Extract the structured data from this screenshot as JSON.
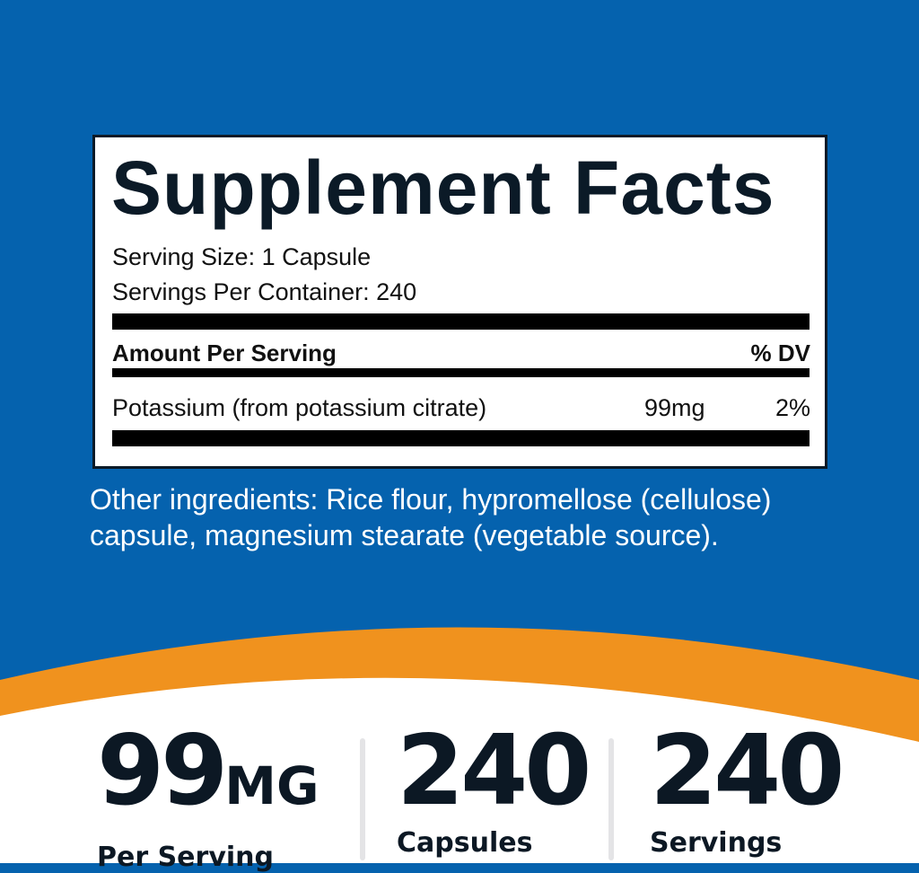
{
  "colors": {
    "background": "#0562ae",
    "accent": "#f0921e",
    "text": "#0b1a27"
  },
  "facts": {
    "title": "Supplement Facts",
    "serving_size": "Serving Size: 1 Capsule",
    "servings_per_container": "Servings Per Container: 240",
    "header_amount": "Amount Per Serving",
    "header_dv": "% DV",
    "rows": [
      {
        "name": "Potassium (from potassium citrate)",
        "amount": "99mg",
        "dv": "2%"
      }
    ]
  },
  "other_ingredients": "Other ingredients: Rice flour, hypromellose (cellulose) capsule, magnesium stearate (vegetable source).",
  "stats": [
    {
      "value": "99",
      "unit": "MG",
      "label": "Per Serving"
    },
    {
      "value": "240",
      "unit": "",
      "label": "Capsules"
    },
    {
      "value": "240",
      "unit": "",
      "label": "Servings"
    }
  ]
}
